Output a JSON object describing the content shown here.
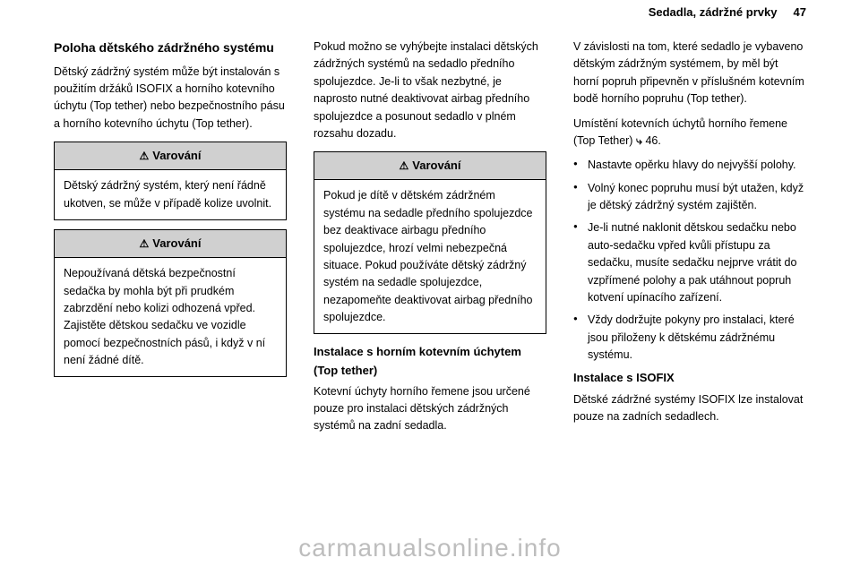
{
  "page": {
    "header": "Sedadla, zádržné prvky",
    "number": "47"
  },
  "col1": {
    "heading": "Poloha dětského zádržného systému",
    "p1": "Dětský zádržný systém může být instalován s použitím držáků ISOFIX a horního kotevního úchytu (Top tether) nebo bezpečnostního pásu a horního kotevního úchytu (Top tether).",
    "w1_text": "Dětský zádržný systém, který není řádně ukotven, se může v případě kolize uvolnit.",
    "w2_text": "Nepoužívaná dětská bezpečnostní sedačka by mohla být při prudkém zabrzdění nebo kolizi odhozená vpřed. Zajistěte dětskou sedačku ve vozidle pomocí bezpečnostních pásů, i když v ní není žádné dítě."
  },
  "col2": {
    "p1": "Pokud možno se vyhýbejte instalaci dětských zádržných systémů na sedadlo předního spolujezdce. Je-li to však nezbytné, je naprosto nutné deaktivovat airbag předního spolujezdce a posunout sedadlo v plném rozsahu dozadu.",
    "w1_text": "Pokud je dítě v dětském zádržném systému na sedadle předního spolujezdce bez deaktivace airbagu předního spolujezdce, hrozí velmi nebezpečná situace. Pokud používáte dětský zádržný systém na sedadle spolujezdce, nezapomeňte deaktivovat airbag předního spolujezdce.",
    "sub1": "Instalace s horním kotevním úchytem (Top tether)",
    "p2": "Kotevní úchyty horního řemene jsou určené pouze pro instalaci dětských zádržných systémů na zadní sedadla."
  },
  "col3": {
    "p1": "V závislosti na tom, které sedadlo je vybaveno dětským zádržným systémem, by měl být horní popruh připevněn v příslušném kotevním bodě horního popruhu (Top tether).",
    "xref_label": "Umístění kotevních úchytů horního řemene (Top Tether)",
    "xref_page": "46",
    "bullets": [
      "Nastavte opěrku hlavy do nejvyšší polohy.",
      "Volný konec popruhu musí být utažen, když je dětský zádržný systém zajištěn.",
      "Je-li nutné naklonit dětskou sedačku nebo auto-sedačku vpřed kvůli přístupu za sedačku, musíte sedačku nejprve vrátit do vzpřímené polohy a pak utáhnout popruh kotvení upínacího zařízení.",
      "Vždy dodržujte pokyny pro instalaci, které jsou přiloženy k dětskému zádržnému systému."
    ],
    "sub1": "Instalace s ISOFIX",
    "p2": "Dětské zádržné systémy ISOFIX lze instalovat pouze na zadních sedadlech."
  },
  "warning_label": "Varování",
  "watermark": "carmanualsonline.info",
  "styling": {
    "page_bg": "#ffffff",
    "text_color": "#000000",
    "warning_header_bg": "#d0d0d0",
    "border_color": "#000000",
    "watermark_color": "#bdbdbd",
    "body_font_size_pt": 9,
    "heading_font_size_pt": 11,
    "watermark_font_size_pt": 21
  }
}
